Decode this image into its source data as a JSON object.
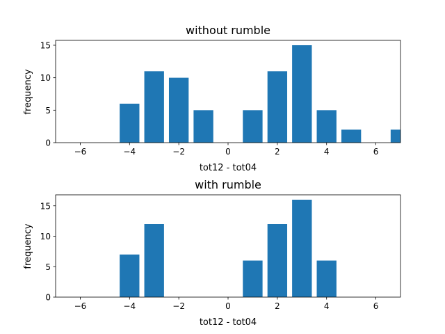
{
  "colors": {
    "bar": "#1f77b4",
    "axis": "#000000",
    "background": "#ffffff"
  },
  "chart_data": [
    {
      "type": "bar",
      "title": "without rumble",
      "xlabel": "tot12 - tot04",
      "ylabel": "frequency",
      "xlim": [
        -7,
        7
      ],
      "ylim": [
        0,
        15.75
      ],
      "xticks": [
        -6,
        -4,
        -2,
        0,
        2,
        4,
        6
      ],
      "yticks": [
        0,
        5,
        10,
        15
      ],
      "bar_width": 0.8,
      "x": [
        -4,
        -3,
        -2,
        -1,
        1,
        2,
        3,
        4,
        5,
        7
      ],
      "values": [
        6,
        11,
        10,
        5,
        5,
        11,
        15,
        5,
        2,
        2
      ],
      "grid": false
    },
    {
      "type": "bar",
      "title": "with rumble",
      "xlabel": "tot12 - tot04",
      "ylabel": "frequency",
      "xlim": [
        -7,
        7
      ],
      "ylim": [
        0,
        16.8
      ],
      "xticks": [
        -6,
        -4,
        -2,
        0,
        2,
        4,
        6
      ],
      "yticks": [
        0,
        5,
        10,
        15
      ],
      "bar_width": 0.8,
      "x": [
        -4,
        -3,
        1,
        2,
        3,
        4
      ],
      "values": [
        7,
        12,
        6,
        12,
        16,
        6
      ],
      "grid": false
    }
  ]
}
